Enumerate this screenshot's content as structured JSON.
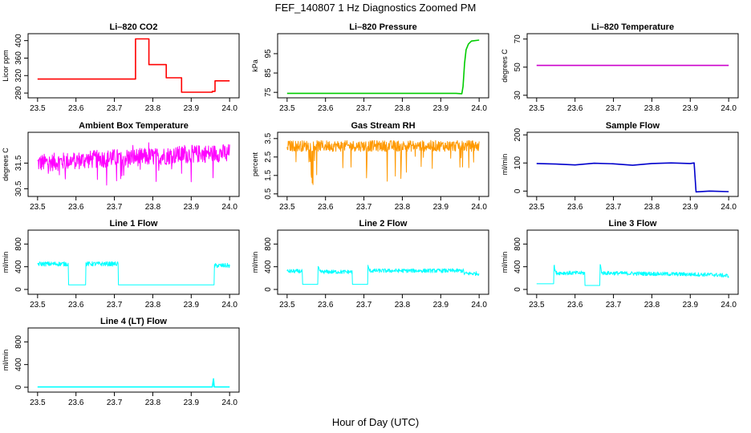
{
  "figure": {
    "title": "FEF_140807  1 Hz Diagnostics Zoomed PM",
    "xlabel": "Hour of Day (UTC)"
  },
  "chart_data": [
    {
      "type": "line",
      "title": "Li–820 CO2",
      "ylabel": "Licor ppm",
      "color": "#ff0000",
      "xlim": [
        23.5,
        24.0
      ],
      "ylim": [
        275,
        410
      ],
      "xticks": [
        "23.5",
        "23.6",
        "23.7",
        "23.8",
        "23.9",
        "24.0"
      ],
      "yticks": [
        "280",
        "320",
        "360",
        "400"
      ],
      "series": [
        {
          "x": [
            23.5,
            23.755,
            23.755,
            23.79,
            23.79,
            23.835,
            23.835,
            23.875,
            23.875,
            23.955,
            23.955,
            23.962,
            23.962,
            24.0
          ],
          "y": [
            312,
            312,
            404,
            404,
            345,
            345,
            315,
            315,
            282,
            282,
            284,
            284,
            308,
            308
          ]
        }
      ]
    },
    {
      "type": "line",
      "title": "Li–820 Pressure",
      "ylabel": "kPa",
      "color": "#00cc00",
      "xlim": [
        23.5,
        24.0
      ],
      "ylim": [
        73.5,
        104
      ],
      "xticks": [
        "23.5",
        "23.6",
        "23.7",
        "23.8",
        "23.9",
        "24.0"
      ],
      "yticks": [
        "75",
        "85",
        "95"
      ],
      "series": [
        {
          "x": [
            23.5,
            23.94,
            23.955,
            23.958,
            23.962,
            23.966,
            23.972,
            23.98,
            24.0
          ],
          "y": [
            74.5,
            74.5,
            74.3,
            78,
            90,
            97,
            100,
            101.5,
            102
          ]
        }
      ]
    },
    {
      "type": "line",
      "title": "Li–820 Temperature",
      "ylabel": "degrees C",
      "color": "#cc00cc",
      "xlim": [
        23.5,
        24.0
      ],
      "ylim": [
        30,
        72
      ],
      "xticks": [
        "23.5",
        "23.6",
        "23.7",
        "23.8",
        "23.9",
        "24.0"
      ],
      "yticks": [
        "30",
        "50",
        "70"
      ],
      "series": [
        {
          "x": [
            23.5,
            24.0
          ],
          "y": [
            51.2,
            51.2
          ]
        }
      ]
    },
    {
      "type": "line",
      "title": "Ambient Box Temperature",
      "ylabel": "degrees C",
      "color": "#ff00ff",
      "xlim": [
        23.5,
        24.0
      ],
      "ylim": [
        30.3,
        32.6
      ],
      "xticks": [
        "23.5",
        "23.6",
        "23.7",
        "23.8",
        "23.9",
        "24.0"
      ],
      "yticks": [
        "30.5",
        "31.5"
      ],
      "noise": {
        "amp": 0.35,
        "spikes": 0.8
      },
      "series": [
        {
          "x": [
            23.5,
            23.6,
            23.7,
            23.8,
            23.9,
            24.0
          ],
          "y": [
            31.5,
            31.6,
            31.7,
            31.75,
            31.85,
            31.9
          ]
        }
      ]
    },
    {
      "type": "line",
      "title": "Gas Stream RH",
      "ylabel": "percent",
      "color": "#ff9900",
      "xlim": [
        23.5,
        24.0
      ],
      "ylim": [
        0.5,
        3.7
      ],
      "xticks": [
        "23.5",
        "23.6",
        "23.7",
        "23.8",
        "23.9",
        "24.0"
      ],
      "yticks": [
        "0.5",
        "1.5",
        "2.5",
        "3.5"
      ],
      "noise": {
        "amp": 0.3,
        "spikes": 2.0,
        "down": true
      },
      "series": [
        {
          "x": [
            23.5,
            24.0
          ],
          "y": [
            3.1,
            3.1
          ]
        }
      ]
    },
    {
      "type": "line",
      "title": "Sample Flow",
      "ylabel": "ml/min",
      "color": "#0000cc",
      "xlim": [
        23.5,
        24.0
      ],
      "ylim": [
        -10,
        200
      ],
      "xticks": [
        "23.5",
        "23.6",
        "23.7",
        "23.8",
        "23.9",
        "24.0"
      ],
      "yticks": [
        "0",
        "100",
        "200"
      ],
      "series": [
        {
          "x": [
            23.5,
            23.55,
            23.6,
            23.65,
            23.7,
            23.75,
            23.8,
            23.85,
            23.9,
            23.91,
            23.915,
            23.95,
            24.0
          ],
          "y": [
            98,
            96,
            93,
            99,
            97,
            92,
            98,
            100,
            98,
            100,
            -3,
            0,
            -2
          ]
        }
      ]
    },
    {
      "type": "line",
      "title": "Line 1 Flow",
      "ylabel": "ml/min",
      "color": "#00ffff",
      "xlim": [
        23.5,
        24.0
      ],
      "ylim": [
        -40,
        1000
      ],
      "xticks": [
        "23.5",
        "23.6",
        "23.7",
        "23.8",
        "23.9",
        "24.0"
      ],
      "yticks": [
        "0",
        "400",
        "800"
      ],
      "noise": {
        "amp": 40,
        "minY": 250
      },
      "series": [
        {
          "x": [
            23.5,
            23.58,
            23.58,
            23.625,
            23.625,
            23.71,
            23.71,
            23.96,
            23.96,
            24.0
          ],
          "y": [
            450,
            450,
            80,
            80,
            450,
            450,
            80,
            80,
            420,
            420
          ]
        }
      ]
    },
    {
      "type": "line",
      "title": "Line 2 Flow",
      "ylabel": "ml/min",
      "color": "#00ffff",
      "xlim": [
        23.5,
        24.0
      ],
      "ylim": [
        -40,
        1000
      ],
      "xticks": [
        "23.5",
        "23.6",
        "23.7",
        "23.8",
        "23.9",
        "24.0"
      ],
      "yticks": [
        "0",
        "400",
        "800"
      ],
      "noise": {
        "amp": 35,
        "minY": 150
      },
      "series": [
        {
          "x": [
            23.5,
            23.54,
            23.54,
            23.58,
            23.58,
            23.585,
            23.67,
            23.67,
            23.71,
            23.71,
            23.715,
            23.96,
            23.96,
            24.0
          ],
          "y": [
            320,
            320,
            90,
            90,
            400,
            310,
            310,
            90,
            90,
            410,
            330,
            330,
            280,
            280
          ]
        }
      ]
    },
    {
      "type": "line",
      "title": "Line 3 Flow",
      "ylabel": "ml/min",
      "color": "#00ffff",
      "xlim": [
        23.5,
        24.0
      ],
      "ylim": [
        -40,
        1000
      ],
      "xticks": [
        "23.5",
        "23.6",
        "23.7",
        "23.8",
        "23.9",
        "24.0"
      ],
      "yticks": [
        "0",
        "400",
        "800"
      ],
      "noise": {
        "amp": 35,
        "minY": 150
      },
      "series": [
        {
          "x": [
            23.5,
            23.545,
            23.545,
            23.55,
            23.625,
            23.625,
            23.665,
            23.665,
            23.67,
            23.96,
            24.0
          ],
          "y": [
            100,
            100,
            430,
            290,
            290,
            70,
            70,
            450,
            290,
            260,
            240
          ]
        }
      ]
    },
    {
      "type": "line",
      "title": "Line 4 (LT) Flow",
      "ylabel": "ml/min",
      "color": "#00ffff",
      "xlim": [
        23.5,
        24.0
      ],
      "ylim": [
        -40,
        1000
      ],
      "xticks": [
        "23.5",
        "23.6",
        "23.7",
        "23.8",
        "23.9",
        "24.0"
      ],
      "yticks": [
        "0",
        "400",
        "800"
      ],
      "series": [
        {
          "x": [
            23.5,
            23.955,
            23.958,
            23.96,
            23.963,
            24.0
          ],
          "y": [
            5,
            5,
            150,
            5,
            5,
            5
          ]
        }
      ]
    }
  ]
}
